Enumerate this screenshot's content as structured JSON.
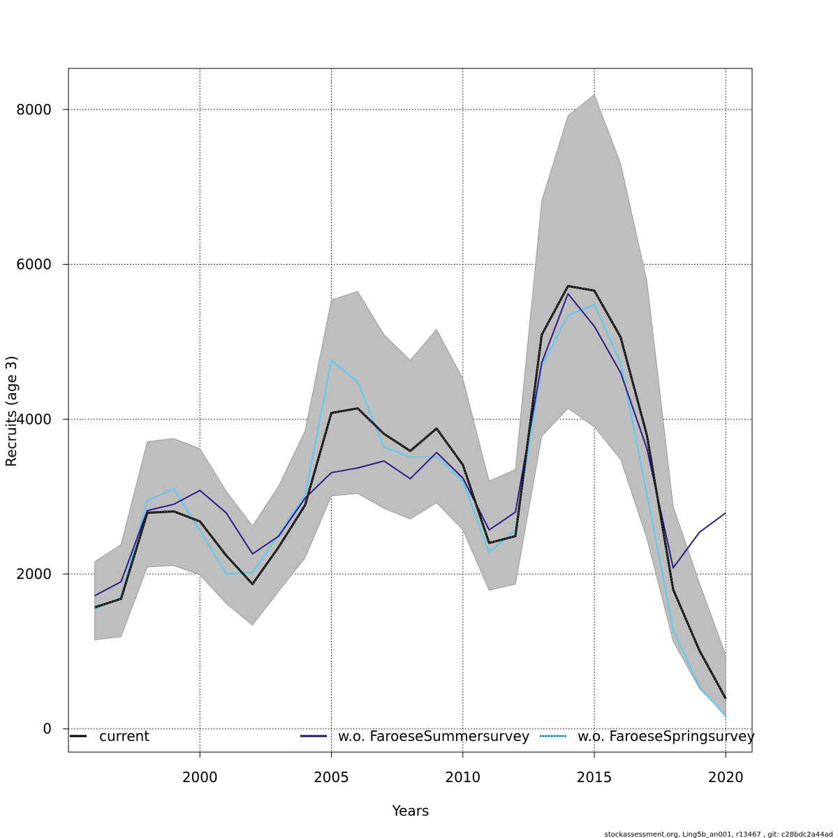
{
  "chart_data": {
    "type": "line",
    "xlabel": "Years",
    "ylabel": "Recruits (age 3)",
    "xlim": [
      1995,
      2021
    ],
    "ylim": [
      -300,
      8530
    ],
    "x_ticks": [
      2000,
      2005,
      2010,
      2015,
      2020
    ],
    "y_ticks": [
      0,
      2000,
      4000,
      6000,
      8000
    ],
    "grid": true,
    "legend_position": "bottom",
    "x": [
      1996,
      1997,
      1998,
      1999,
      2000,
      2001,
      2002,
      2003,
      2004,
      2005,
      2006,
      2007,
      2008,
      2009,
      2010,
      2011,
      2012,
      2013,
      2014,
      2015,
      2016,
      2017,
      2018,
      2019,
      2020
    ],
    "confidence_band": {
      "lower": [
        1150,
        1190,
        2090,
        2110,
        1990,
        1620,
        1340,
        1780,
        2210,
        3010,
        3040,
        2850,
        2710,
        2920,
        2570,
        1790,
        1870,
        3780,
        4140,
        3900,
        3480,
        2460,
        1130,
        520,
        170
      ],
      "upper": [
        2160,
        2380,
        3710,
        3750,
        3620,
        3070,
        2620,
        3140,
        3850,
        5540,
        5650,
        5090,
        4760,
        5160,
        4520,
        3200,
        3350,
        6820,
        7920,
        8190,
        7300,
        5780,
        2870,
        1880,
        950
      ]
    },
    "series": [
      {
        "name": "current",
        "color": "#000000",
        "values": [
          1570,
          1680,
          2790,
          2810,
          2680,
          2240,
          1870,
          2350,
          2890,
          4080,
          4140,
          3810,
          3590,
          3880,
          3410,
          2400,
          2490,
          5090,
          5720,
          5660,
          5060,
          3790,
          1800,
          1010,
          390
        ]
      },
      {
        "name": "w.o. FaroeseSummersurvey",
        "color": "#2e1a87",
        "values": [
          1720,
          1900,
          2820,
          2900,
          3080,
          2790,
          2260,
          2490,
          2980,
          3310,
          3370,
          3460,
          3230,
          3570,
          3240,
          2570,
          2800,
          4730,
          5620,
          5200,
          4600,
          3620,
          2080,
          2540,
          2790
        ]
      },
      {
        "name": "w.o. FaroeseSpringsurvey",
        "color": "#5bc8f5",
        "values": [
          1550,
          1700,
          2950,
          3100,
          2560,
          2000,
          2020,
          2510,
          3020,
          4760,
          4480,
          3640,
          3510,
          3510,
          3200,
          2280,
          2570,
          4690,
          5340,
          5480,
          4730,
          3030,
          1280,
          540,
          160
        ]
      }
    ],
    "footer_text": "stockassessment.org, Ling5b_an001, r13467 , git: c28bdc2a44ad"
  },
  "colors": {
    "band_fill": "#bebebe",
    "grid": "#000000",
    "frame": "#000000"
  }
}
